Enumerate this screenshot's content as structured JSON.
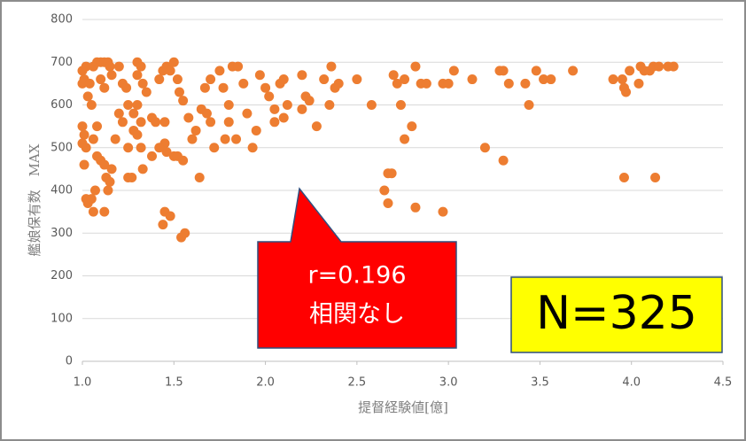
{
  "chart_data": {
    "type": "scatter",
    "y_label": "艦娘保有数　MAX",
    "x_label": "提督経験値[億]",
    "color": "#ED7D31",
    "grid": true,
    "xlim": [
      1.0,
      4.5
    ],
    "xticks": [
      {
        "value": 1,
        "label": "1.0"
      },
      1.5,
      {
        "value": 2,
        "label": "2.0"
      },
      2.5,
      {
        "value": 3,
        "label": "3.0"
      },
      3.5,
      {
        "value": 4,
        "label": "4.0"
      },
      4.5
    ],
    "ylim": [
      0,
      800
    ],
    "yticks": [
      0,
      100,
      200,
      300,
      400,
      500,
      600,
      700,
      800
    ],
    "annotations": [
      "r=0.196",
      "相関なし",
      "N=325"
    ],
    "x": [
      1.0,
      1.0,
      1.01,
      1.02,
      1.0,
      1.01,
      1.02,
      1.0,
      1.01,
      1.02,
      1.03,
      1.05,
      1.06,
      1.07,
      1.03,
      1.05,
      1.04,
      1.06,
      1.08,
      1.1,
      1.12,
      1.14,
      1.1,
      1.12,
      1.15,
      1.16,
      1.08,
      1.06,
      1.08,
      1.1,
      1.12,
      1.13,
      1.15,
      1.12,
      1.14,
      1.16,
      1.18,
      1.2,
      1.2,
      1.22,
      1.24,
      1.25,
      1.22,
      1.25,
      1.28,
      1.3,
      1.32,
      1.3,
      1.33,
      1.35,
      1.3,
      1.28,
      1.32,
      1.3,
      1.32,
      1.33,
      1.25,
      1.27,
      1.38,
      1.38,
      1.4,
      1.42,
      1.44,
      1.46,
      1.48,
      1.45,
      1.45,
      1.46,
      1.42,
      1.5,
      1.52,
      1.53,
      1.55,
      1.5,
      1.52,
      1.55,
      1.45,
      1.48,
      1.44,
      1.54,
      1.56,
      1.58,
      1.6,
      1.62,
      1.64,
      1.65,
      1.67,
      1.7,
      1.68,
      1.7,
      1.72,
      1.75,
      1.77,
      1.8,
      1.8,
      1.82,
      1.85,
      1.84,
      1.78,
      1.88,
      1.9,
      1.93,
      1.95,
      1.97,
      2.0,
      2.02,
      2.05,
      2.05,
      2.08,
      2.1,
      2.1,
      2.12,
      2.2,
      2.22,
      2.2,
      2.24,
      2.28,
      2.32,
      2.36,
      2.35,
      2.38,
      2.4,
      2.5,
      2.58,
      2.65,
      2.67,
      2.69,
      2.67,
      2.7,
      2.72,
      2.74,
      2.76,
      2.76,
      2.8,
      2.82,
      2.82,
      2.85,
      2.88,
      2.97,
      2.97,
      3.0,
      3.03,
      3.13,
      3.2,
      3.28,
      3.3,
      3.3,
      3.33,
      3.42,
      3.44,
      3.48,
      3.52,
      3.56,
      3.68,
      3.9,
      3.95,
      3.96,
      3.96,
      3.97,
      3.99,
      4.04,
      4.05,
      4.07,
      4.1,
      4.12,
      4.13,
      4.15,
      4.2,
      4.23
    ],
    "y": [
      650,
      680,
      660,
      690,
      550,
      530,
      500,
      510,
      460,
      380,
      370,
      380,
      350,
      400,
      620,
      600,
      650,
      690,
      700,
      700,
      700,
      700,
      660,
      640,
      690,
      670,
      550,
      520,
      480,
      470,
      460,
      430,
      420,
      350,
      400,
      450,
      520,
      580,
      690,
      650,
      640,
      600,
      560,
      500,
      540,
      700,
      690,
      670,
      650,
      630,
      600,
      580,
      560,
      530,
      500,
      450,
      430,
      430,
      570,
      480,
      560,
      660,
      680,
      690,
      680,
      560,
      510,
      490,
      500,
      700,
      660,
      630,
      610,
      480,
      480,
      470,
      350,
      340,
      320,
      290,
      300,
      570,
      520,
      540,
      430,
      590,
      640,
      660,
      580,
      560,
      500,
      680,
      640,
      600,
      560,
      690,
      690,
      520,
      520,
      650,
      580,
      500,
      540,
      670,
      640,
      620,
      590,
      560,
      650,
      660,
      570,
      600,
      670,
      620,
      590,
      610,
      550,
      660,
      690,
      600,
      640,
      650,
      660,
      600,
      400,
      440,
      440,
      370,
      670,
      650,
      600,
      520,
      660,
      550,
      690,
      360,
      650,
      650,
      650,
      350,
      650,
      680,
      660,
      500,
      680,
      680,
      470,
      650,
      650,
      600,
      680,
      660,
      660,
      680,
      660,
      660,
      640,
      430,
      630,
      680,
      650,
      690,
      680,
      680,
      690,
      430,
      690,
      690,
      690
    ]
  }
}
